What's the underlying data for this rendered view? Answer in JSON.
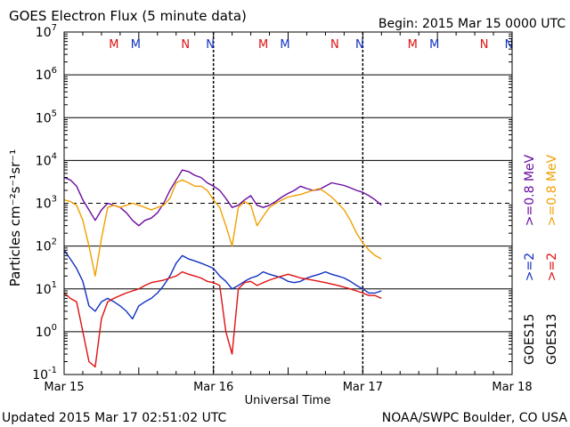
{
  "header": {
    "title": "GOES Electron Flux (5 minute data)",
    "begin": "Begin: 2015 Mar 15 0000 UTC"
  },
  "footer": {
    "updated": "Updated 2015 Mar 17 02:51:02 UTC",
    "source": "NOAA/SWPC Boulder, CO USA"
  },
  "chart_data": {
    "type": "line",
    "title": "GOES Electron Flux (5 minute data)",
    "xlabel": "Universal Time",
    "ylabel": "Particles cm⁻²s⁻¹sr⁻¹",
    "y_scale": "log",
    "ylim": [
      0.1,
      10000000
    ],
    "xlim": [
      0,
      72
    ],
    "x_unit": "hours since 2015 Mar 15 0000 UTC",
    "x_ticks": [
      {
        "x": 0,
        "label": "Mar 15"
      },
      {
        "x": 24,
        "label": "Mar 16"
      },
      {
        "x": 48,
        "label": "Mar 17"
      },
      {
        "x": 72,
        "label": "Mar 18"
      }
    ],
    "y_ticks": [
      {
        "exp": "-1"
      },
      {
        "exp": "0"
      },
      {
        "exp": "1"
      },
      {
        "exp": "2"
      },
      {
        "exp": "3"
      },
      {
        "exp": "4"
      },
      {
        "exp": "5"
      },
      {
        "exp": "6"
      },
      {
        "exp": "7"
      }
    ],
    "threshold": 1000,
    "grid": true,
    "markers": [
      {
        "x": 8.0,
        "label": "M",
        "color": "#e01010"
      },
      {
        "x": 11.5,
        "label": "M",
        "color": "#1030c0"
      },
      {
        "x": 19.5,
        "label": "N",
        "color": "#e01010"
      },
      {
        "x": 23.5,
        "label": "N",
        "color": "#1030c0"
      },
      {
        "x": 32.0,
        "label": "M",
        "color": "#e01010"
      },
      {
        "x": 35.5,
        "label": "M",
        "color": "#1030c0"
      },
      {
        "x": 43.5,
        "label": "N",
        "color": "#e01010"
      },
      {
        "x": 47.5,
        "label": "N",
        "color": "#1030c0"
      },
      {
        "x": 56.0,
        "label": "M",
        "color": "#e01010"
      },
      {
        "x": 59.5,
        "label": "M",
        "color": "#1030c0"
      },
      {
        "x": 67.5,
        "label": "N",
        "color": "#e01010"
      },
      {
        "x": 71.5,
        "label": "N",
        "color": "#1030c0"
      }
    ],
    "series": [
      {
        "name": ">=0.8 MeV",
        "satellite": "GOES15",
        "color": "#6a0ca0",
        "x": [
          0,
          1,
          2,
          3,
          4,
          5,
          6,
          7,
          8,
          9,
          10,
          11,
          12,
          13,
          14,
          15,
          16,
          17,
          18,
          19,
          20,
          21,
          22,
          23,
          24,
          25,
          26,
          27,
          28,
          29,
          30,
          31,
          32,
          33,
          34,
          35,
          36,
          37,
          38,
          39,
          40,
          41,
          42,
          43,
          44,
          45,
          46,
          47,
          48,
          49,
          50,
          51
        ],
        "y": [
          4000,
          3500,
          2500,
          1200,
          700,
          400,
          700,
          1000,
          900,
          800,
          600,
          400,
          300,
          400,
          450,
          600,
          1000,
          2000,
          3500,
          6000,
          5500,
          4500,
          4000,
          3000,
          2500,
          2000,
          1300,
          800,
          900,
          1200,
          1500,
          900,
          800,
          900,
          1100,
          1400,
          1700,
          2000,
          2500,
          2200,
          2000,
          2100,
          2500,
          3000,
          2800,
          2600,
          2300,
          2000,
          1800,
          1500,
          1200,
          900
        ]
      },
      {
        "name": ">=0.8 MeV",
        "satellite": "GOES13",
        "color": "#f0a000",
        "x": [
          0,
          1,
          2,
          3,
          4,
          5,
          6,
          7,
          8,
          9,
          10,
          11,
          12,
          13,
          14,
          15,
          16,
          17,
          18,
          19,
          20,
          21,
          22,
          23,
          24,
          25,
          26,
          27,
          28,
          29,
          30,
          31,
          32,
          33,
          34,
          35,
          36,
          37,
          38,
          39,
          40,
          41,
          42,
          43,
          44,
          45,
          46,
          47,
          48,
          49,
          50,
          51
        ],
        "y": [
          1200,
          1100,
          900,
          400,
          100,
          20,
          150,
          800,
          900,
          800,
          900,
          1000,
          900,
          800,
          700,
          800,
          900,
          1300,
          3000,
          3500,
          3000,
          2500,
          2500,
          2000,
          1200,
          800,
          300,
          100,
          800,
          1100,
          900,
          300,
          500,
          800,
          1000,
          1200,
          1400,
          1500,
          1600,
          1800,
          2000,
          2200,
          1800,
          1400,
          1000,
          700,
          400,
          200,
          120,
          80,
          60,
          50
        ]
      },
      {
        "name": ">=2 MeV",
        "satellite": "GOES15",
        "color": "#1030c0",
        "x": [
          0,
          1,
          2,
          3,
          4,
          5,
          6,
          7,
          8,
          9,
          10,
          11,
          12,
          13,
          14,
          15,
          16,
          17,
          18,
          19,
          20,
          21,
          22,
          23,
          24,
          25,
          26,
          27,
          28,
          29,
          30,
          31,
          32,
          33,
          34,
          35,
          36,
          37,
          38,
          39,
          40,
          41,
          42,
          43,
          44,
          45,
          46,
          47,
          48,
          49,
          50,
          51
        ],
        "y": [
          80,
          50,
          30,
          15,
          4,
          3,
          5,
          6,
          5,
          4,
          3,
          2,
          4,
          5,
          6,
          8,
          12,
          20,
          40,
          60,
          50,
          45,
          40,
          35,
          30,
          20,
          15,
          10,
          12,
          15,
          18,
          20,
          25,
          22,
          20,
          18,
          15,
          14,
          15,
          18,
          20,
          22,
          25,
          22,
          20,
          18,
          15,
          12,
          10,
          8,
          8,
          9
        ]
      },
      {
        "name": ">=2 MeV",
        "satellite": "GOES13",
        "color": "#e01010",
        "x": [
          0,
          1,
          2,
          3,
          4,
          5,
          6,
          7,
          8,
          9,
          10,
          11,
          12,
          13,
          14,
          15,
          16,
          17,
          18,
          19,
          20,
          21,
          22,
          23,
          24,
          25,
          26,
          27,
          28,
          29,
          30,
          31,
          32,
          33,
          34,
          35,
          36,
          37,
          38,
          39,
          40,
          41,
          42,
          43,
          44,
          45,
          46,
          47,
          48,
          49,
          50,
          51
        ],
        "y": [
          8,
          6,
          5,
          1,
          0.2,
          0.15,
          2,
          5,
          6,
          7,
          8,
          9,
          10,
          12,
          14,
          15,
          16,
          18,
          20,
          25,
          22,
          20,
          18,
          15,
          14,
          12,
          1,
          0.3,
          10,
          14,
          15,
          12,
          14,
          16,
          18,
          20,
          22,
          20,
          18,
          17,
          16,
          15,
          14,
          13,
          12,
          11,
          10,
          9,
          8,
          7,
          7,
          6
        ]
      }
    ],
    "legend": {
      "position": "right",
      "groups": [
        {
          "name": "GOES15",
          "items": [
            {
              "label": ">=2",
              "color": "#1030c0"
            },
            {
              "label": ">=0.8 MeV",
              "color": "#6a0ca0"
            }
          ]
        },
        {
          "name": "GOES13",
          "items": [
            {
              "label": ">=2",
              "color": "#e01010"
            },
            {
              "label": ">=0.8 MeV",
              "color": "#f0a000"
            }
          ]
        }
      ]
    }
  }
}
